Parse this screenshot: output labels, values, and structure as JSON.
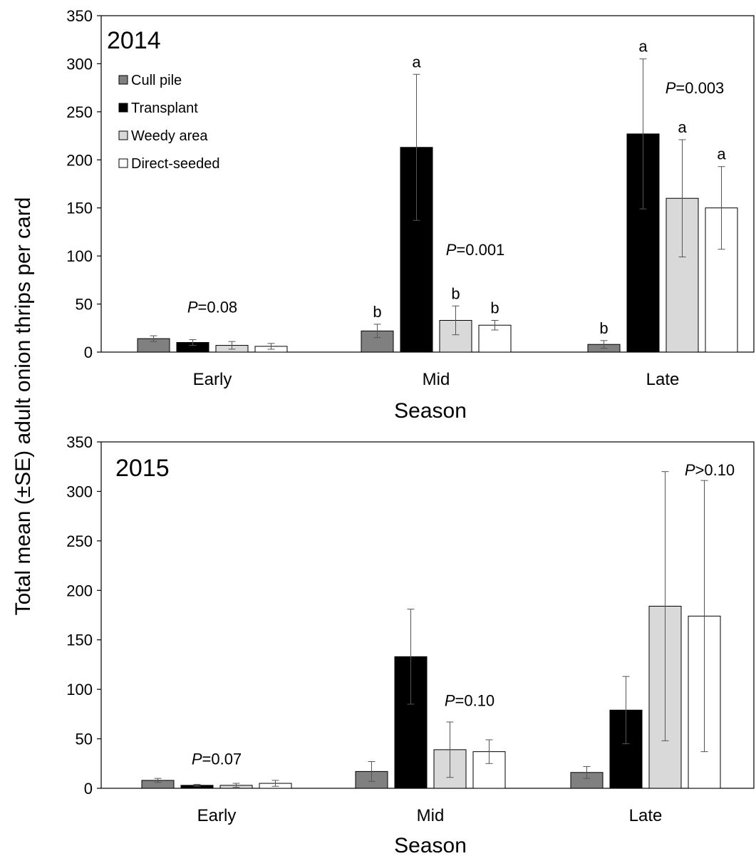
{
  "ylabel": "Total mean (±SE) adult onion thrips per card",
  "series_colors": [
    "#808080",
    "#000000",
    "#d9d9d9",
    "#ffffff"
  ],
  "chart_data": [
    {
      "type": "bar",
      "panel_label": "2014",
      "xlabel": "Season",
      "categories": [
        "Early",
        "Mid",
        "Late"
      ],
      "ylim": [
        0,
        350
      ],
      "yticks": [
        0,
        50,
        100,
        150,
        200,
        250,
        300,
        350
      ],
      "legend": {
        "placement": "top-left",
        "entries": [
          "Cull pile",
          "Transplant",
          "Weedy area",
          "Direct-seeded"
        ]
      },
      "series": [
        {
          "name": "Cull pile",
          "values": [
            14,
            22,
            8
          ],
          "se": [
            3,
            7,
            4
          ],
          "letters": [
            "",
            "b",
            "b"
          ]
        },
        {
          "name": "Transplant",
          "values": [
            10,
            213,
            227
          ],
          "se": [
            3,
            76,
            78
          ],
          "letters": [
            "",
            "",
            "a"
          ]
        },
        {
          "name": "Weedy area",
          "values": [
            7,
            33,
            160
          ],
          "se": [
            4,
            15,
            61
          ],
          "letters": [
            "",
            "b",
            "a"
          ]
        },
        {
          "name": "Direct-seeded",
          "values": [
            6,
            28,
            150
          ],
          "se": [
            3,
            5,
            43
          ],
          "letters": [
            "",
            "b",
            "a"
          ]
        }
      ],
      "extra_letters": [
        {
          "text": "a",
          "category_index": 1,
          "series_index": 1,
          "value": 289
        }
      ],
      "annotations": [
        {
          "prefix": "P",
          "text": "=0.08",
          "category_index": 0,
          "y": 41
        },
        {
          "prefix": "P",
          "text": "=0.001",
          "category_index": 1,
          "y": 101
        },
        {
          "prefix": "P",
          "text": "=0.003",
          "category_index": 2,
          "y": 269
        }
      ]
    },
    {
      "type": "bar",
      "panel_label": "2015",
      "xlabel": "Season",
      "categories": [
        "Early",
        "Mid",
        "Late"
      ],
      "ylim": [
        0,
        350
      ],
      "yticks": [
        0,
        50,
        100,
        150,
        200,
        250,
        300,
        350
      ],
      "series": [
        {
          "name": "Cull pile",
          "values": [
            8,
            17,
            16
          ],
          "se": [
            2,
            10,
            6
          ]
        },
        {
          "name": "Transplant",
          "values": [
            3,
            133,
            79
          ],
          "se": [
            1,
            48,
            34
          ]
        },
        {
          "name": "Weedy area",
          "values": [
            3,
            39,
            184
          ],
          "se": [
            2,
            28,
            136
          ]
        },
        {
          "name": "Direct-seeded",
          "values": [
            5,
            37,
            174
          ],
          "se": [
            3,
            12,
            137
          ]
        }
      ],
      "annotations": [
        {
          "prefix": "P",
          "text": "=0.07",
          "category_index": 0,
          "y": 24
        },
        {
          "prefix": "P",
          "text": "=0.10",
          "category_index": 1,
          "y": 83
        },
        {
          "prefix": "P",
          "text": ">0.10",
          "category_index": 2,
          "y": 316
        }
      ]
    }
  ]
}
